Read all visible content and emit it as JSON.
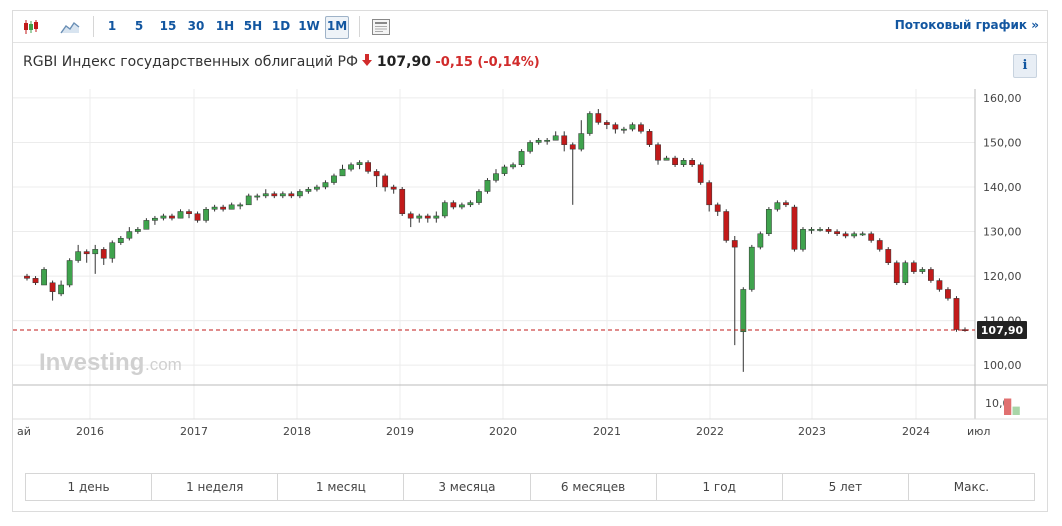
{
  "toolbar": {
    "chart_type_icons": [
      "candlestick-icon",
      "area-chart-icon"
    ],
    "intervals": [
      "1",
      "5",
      "15",
      "30",
      "1H",
      "5H",
      "1D",
      "1W",
      "1M"
    ],
    "selected_interval": "1M",
    "stream_label": "Потоковый график »"
  },
  "instrument": {
    "name": "RGBI Индекс государственных облигаций РФ",
    "price": "107,90",
    "change": "-0,15",
    "change_pct": "(-0,14%)",
    "direction": "down",
    "info_label": "i"
  },
  "watermark": {
    "brand": "Investing",
    "suffix": ".com"
  },
  "chart_data": {
    "type": "candlestick",
    "y_ticks": [
      "160,00",
      "150,00",
      "140,00",
      "130,00",
      "120,00",
      "110,00",
      "100,00"
    ],
    "volume_tick": "10,0",
    "x_ticks": [
      "ай",
      "2016",
      "2017",
      "2018",
      "2019",
      "2020",
      "2021",
      "2022",
      "2023",
      "2024",
      "июл"
    ],
    "current_price_label": "107,90",
    "ylim": [
      96,
      162
    ],
    "colors": {
      "up": "#3fa34d",
      "down": "#c21a1a",
      "up_vol": "#a8d5a8",
      "down_vol": "#e07070",
      "price_line": "#c21a1a"
    },
    "candles": [
      [
        120,
        119.5,
        120.5,
        119
      ],
      [
        119.5,
        118.5,
        120,
        118
      ],
      [
        118,
        121.5,
        122,
        118
      ],
      [
        118.5,
        116.5,
        119,
        114.5
      ],
      [
        116,
        118,
        119,
        115.5
      ],
      [
        118,
        123.5,
        124,
        117.5
      ],
      [
        123.5,
        125.5,
        127,
        123
      ],
      [
        125.5,
        125,
        126,
        123
      ],
      [
        125,
        126,
        127,
        120.5
      ],
      [
        126,
        124,
        126.5,
        122.5
      ],
      [
        124,
        127.5,
        128,
        123
      ],
      [
        127.5,
        128.5,
        129,
        127
      ],
      [
        128.5,
        130,
        131,
        128
      ],
      [
        130,
        130.5,
        131,
        129.5
      ],
      [
        130.5,
        132.5,
        133,
        130.5
      ],
      [
        132.5,
        133,
        133.5,
        131.5
      ],
      [
        133,
        133.5,
        134,
        132.5
      ],
      [
        133.5,
        133,
        134,
        132.5
      ],
      [
        133,
        134.5,
        135,
        133
      ],
      [
        134.5,
        134,
        135,
        133
      ],
      [
        134,
        132.5,
        134.5,
        132
      ],
      [
        132.5,
        135,
        135.5,
        132
      ],
      [
        135,
        135.5,
        136,
        134.5
      ],
      [
        135.5,
        135,
        136,
        134.5
      ],
      [
        135,
        136,
        136.5,
        135
      ],
      [
        136,
        136,
        136.5,
        135
      ],
      [
        136,
        138,
        138.5,
        136
      ],
      [
        138,
        138,
        138.5,
        137
      ],
      [
        138,
        138.5,
        139.5,
        137.5
      ],
      [
        138.5,
        138,
        139,
        137.5
      ],
      [
        138,
        138.5,
        139,
        137.5
      ],
      [
        138.5,
        138,
        139,
        137.5
      ],
      [
        138,
        139,
        139.5,
        137.5
      ],
      [
        139,
        139.5,
        140,
        138.5
      ],
      [
        139.5,
        140,
        140.5,
        139
      ],
      [
        140,
        141,
        141.5,
        139.5
      ],
      [
        141,
        142.5,
        143,
        140.5
      ],
      [
        142.5,
        144,
        145,
        142.5
      ],
      [
        144,
        145,
        145.5,
        143.5
      ],
      [
        145,
        145.5,
        146,
        144
      ],
      [
        145.5,
        143.5,
        146,
        143
      ],
      [
        143.5,
        142.5,
        144,
        140
      ],
      [
        142.5,
        140,
        143,
        139
      ],
      [
        140,
        139.5,
        140.5,
        138.5
      ],
      [
        139.5,
        134,
        140,
        133.5
      ],
      [
        134,
        133,
        134.5,
        131
      ],
      [
        133,
        133.5,
        134,
        132
      ],
      [
        133.5,
        133,
        134,
        132
      ],
      [
        133,
        133.5,
        134.5,
        132
      ],
      [
        133.5,
        136.5,
        137,
        133
      ],
      [
        136.5,
        135.5,
        137,
        135
      ],
      [
        135.5,
        136,
        136.5,
        135
      ],
      [
        136,
        136.5,
        137,
        135.5
      ],
      [
        136.5,
        139,
        139.5,
        136
      ],
      [
        139,
        141.5,
        142,
        138.5
      ],
      [
        141.5,
        143,
        144,
        141
      ],
      [
        143,
        144.5,
        145,
        142.5
      ],
      [
        144.5,
        145,
        145.5,
        144
      ],
      [
        145,
        148,
        148.5,
        144.5
      ],
      [
        148,
        150,
        150.5,
        147.5
      ],
      [
        150,
        150.5,
        151,
        149.5
      ],
      [
        150.5,
        150.5,
        151,
        149.5
      ],
      [
        150.5,
        151.5,
        152.5,
        150.5
      ],
      [
        151.5,
        149.5,
        152.5,
        148
      ],
      [
        149.5,
        148.5,
        150,
        136
      ],
      [
        148.5,
        152,
        155,
        148
      ],
      [
        152,
        156.5,
        157,
        151.5
      ],
      [
        156.5,
        154.5,
        157.5,
        154
      ],
      [
        154.5,
        154,
        155,
        153
      ],
      [
        154,
        153,
        154.5,
        152
      ],
      [
        153,
        153,
        153.5,
        152
      ],
      [
        153,
        154,
        154.5,
        152.5
      ],
      [
        154,
        152.5,
        154.5,
        152
      ],
      [
        152.5,
        149.5,
        153,
        149
      ],
      [
        149.5,
        146,
        150,
        145
      ],
      [
        146,
        146.5,
        147,
        146
      ],
      [
        146.5,
        145,
        147,
        144.5
      ],
      [
        145,
        146,
        146.5,
        144.5
      ],
      [
        146,
        145,
        146.5,
        144.5
      ],
      [
        145,
        141,
        145.5,
        140.5
      ],
      [
        141,
        136,
        141.5,
        134.5
      ],
      [
        136,
        134.5,
        136.5,
        133.5
      ],
      [
        134.5,
        128,
        135,
        127.5
      ],
      [
        128,
        126.5,
        129,
        104.5
      ],
      [
        107.5,
        117,
        117.5,
        98.5
      ],
      [
        117,
        126.5,
        127,
        116.5
      ],
      [
        126.5,
        129.5,
        130,
        126
      ],
      [
        129.5,
        135,
        135.5,
        129
      ],
      [
        135,
        136.5,
        137,
        134.5
      ],
      [
        136.5,
        136,
        137,
        135.5
      ],
      [
        135.5,
        126,
        136,
        125.5
      ],
      [
        126,
        130.5,
        131,
        125.5
      ],
      [
        130.5,
        130.5,
        131,
        129.5
      ],
      [
        130.5,
        130.5,
        131,
        130
      ],
      [
        130.5,
        130,
        131,
        129.5
      ],
      [
        130,
        129.5,
        130.5,
        129
      ],
      [
        129.5,
        129,
        130,
        128.5
      ],
      [
        129,
        129.5,
        130,
        128.5
      ],
      [
        129.5,
        129.5,
        130,
        129
      ],
      [
        129.5,
        128,
        130,
        127.5
      ],
      [
        128,
        126,
        128.5,
        125.5
      ],
      [
        126,
        123,
        126.5,
        122.5
      ],
      [
        123,
        118.5,
        123.5,
        118
      ],
      [
        118.5,
        123,
        123.5,
        118
      ],
      [
        123,
        121,
        123.5,
        120.5
      ],
      [
        121,
        121.5,
        122,
        120.5
      ],
      [
        121.5,
        119,
        122,
        118.5
      ],
      [
        119,
        117,
        119.5,
        116.5
      ],
      [
        117,
        115,
        117.5,
        114.5
      ],
      [
        115,
        108,
        115.5,
        107.5
      ],
      [
        108,
        107.9,
        108.5,
        107.5
      ]
    ],
    "volume": [
      [
        115,
        0.55,
        "down"
      ],
      [
        116,
        0.28,
        "up"
      ]
    ]
  },
  "periods": [
    "1 день",
    "1 неделя",
    "1 месяц",
    "3 месяца",
    "6 месяцев",
    "1 год",
    "5 лет",
    "Макс."
  ]
}
